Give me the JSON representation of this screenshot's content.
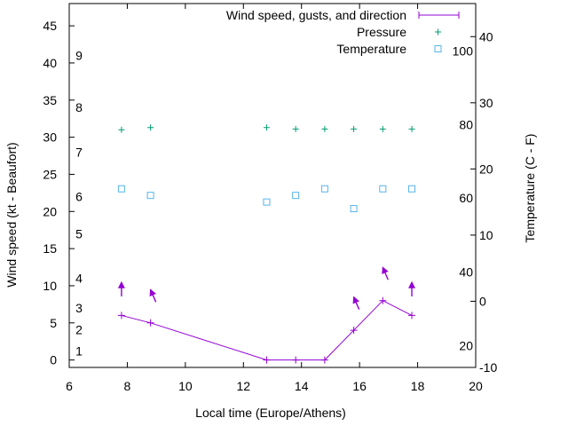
{
  "chart_data": {
    "type": "line",
    "xlabel": "Local time (Europe/Athens)",
    "ylabel": "Wind speed (kt - Beaufort)",
    "y2label": "Temperature (C - F)",
    "xlim": [
      6,
      20
    ],
    "ylim": [
      -1,
      48
    ],
    "y2lim": [
      -10,
      45
    ],
    "xticks": [
      6,
      8,
      10,
      12,
      14,
      16,
      18,
      20
    ],
    "yticks": [
      0,
      5,
      10,
      15,
      20,
      25,
      30,
      35,
      40,
      45
    ],
    "y2ticks": [
      -10,
      0,
      10,
      20,
      30,
      40
    ],
    "beaufort_labels": [
      {
        "label": "1",
        "y": 1.2
      },
      {
        "label": "2",
        "y": 4.1
      },
      {
        "label": "3",
        "y": 7.0
      },
      {
        "label": "4",
        "y": 11.0
      },
      {
        "label": "5",
        "y": 17.0
      },
      {
        "label": "6",
        "y": 22.0
      },
      {
        "label": "7",
        "y": 28.0
      },
      {
        "label": "8",
        "y": 34.0
      },
      {
        "label": "9",
        "y": 41.0
      }
    ],
    "fahrenheit_labels": [
      {
        "label": "20",
        "c": -6.7
      },
      {
        "label": "40",
        "c": 4.4
      },
      {
        "label": "60",
        "c": 15.6
      },
      {
        "label": "80",
        "c": 26.7
      },
      {
        "label": "100",
        "c": 37.8
      }
    ],
    "legend": [
      {
        "label": "Wind speed, gusts, and direction",
        "color": "#9400d3",
        "marker": "line-plus"
      },
      {
        "label": "Pressure",
        "color": "#009e73",
        "marker": "plus"
      },
      {
        "label": "Temperature",
        "color": "#56b4e9",
        "marker": "square"
      }
    ],
    "series": [
      {
        "name": "Wind speed, gusts, and direction",
        "color": "#9400d3",
        "x": [
          7.8,
          8.8,
          12.8,
          13.8,
          14.8,
          15.8,
          16.8,
          17.8
        ],
        "y": [
          6.0,
          5.0,
          0.0,
          0.0,
          0.0,
          4.0,
          8.0,
          6.0
        ],
        "gust_y": [
          10.0,
          9.0,
          null,
          null,
          null,
          8.0,
          12.0,
          10.0
        ],
        "direction_dx": [
          0.0,
          -0.12,
          null,
          null,
          null,
          -0.12,
          -0.12,
          0.0
        ]
      },
      {
        "name": "Pressure",
        "color": "#009e73",
        "x": [
          7.8,
          8.8,
          12.8,
          13.8,
          14.8,
          15.8,
          16.8,
          17.8
        ],
        "y": [
          31.0,
          31.3,
          31.3,
          31.1,
          31.1,
          31.1,
          31.1,
          31.1
        ]
      },
      {
        "name": "Temperature",
        "color": "#56b4e9",
        "axis": "y2",
        "x": [
          7.8,
          8.8,
          12.8,
          13.8,
          14.8,
          15.8,
          16.8,
          17.8
        ],
        "y": [
          17.0,
          16.0,
          15.0,
          16.0,
          17.0,
          14.0,
          17.0,
          17.0
        ]
      }
    ]
  }
}
